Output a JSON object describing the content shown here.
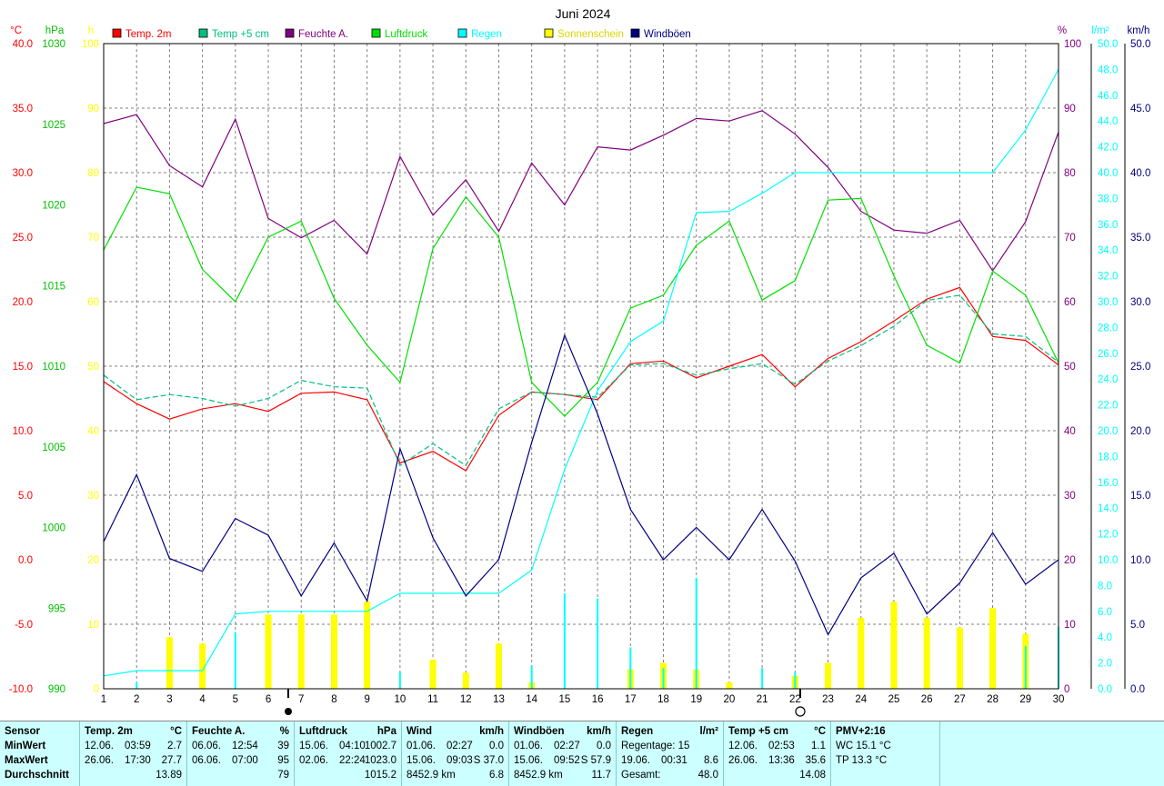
{
  "chart_data": {
    "type": "line",
    "title": "Juni 2024",
    "x": [
      1,
      2,
      3,
      4,
      5,
      6,
      7,
      8,
      9,
      10,
      11,
      12,
      13,
      14,
      15,
      16,
      17,
      18,
      19,
      20,
      21,
      22,
      23,
      24,
      25,
      26,
      27,
      28,
      29,
      30
    ],
    "axes": {
      "temp": {
        "unit": "°C",
        "min": -10,
        "max": 40,
        "ticks": [
          "40.0",
          "35.0",
          "30.0",
          "25.0",
          "20.0",
          "15.0",
          "10.0",
          "5.0",
          "0.0",
          "-5.0",
          "-10.0"
        ],
        "color": "#ff0000"
      },
      "pressure": {
        "unit": "hPa",
        "min": 990,
        "max": 1030,
        "ticks": [
          "1030",
          "1025",
          "1020",
          "1015",
          "1010",
          "1005",
          "1000",
          "995",
          "990"
        ],
        "color": "#00c000"
      },
      "sun": {
        "unit": "h",
        "min": 0,
        "max": 100,
        "ticks": [
          "100",
          "90",
          "80",
          "70",
          "60",
          "50",
          "40",
          "30",
          "20",
          "10",
          "0"
        ],
        "color": "#ffff00"
      },
      "humidity": {
        "unit": "%",
        "min": 0,
        "max": 100,
        "ticks": [
          "100",
          "90",
          "80",
          "70",
          "60",
          "50",
          "40",
          "30",
          "20",
          "10",
          "0"
        ],
        "color": "#800080"
      },
      "rain": {
        "unit": "l/m²",
        "min": 0,
        "max": 50,
        "ticks": [
          "50.0",
          "48.0",
          "46.0",
          "44.0",
          "42.0",
          "40.0",
          "38.0",
          "36.0",
          "34.0",
          "32.0",
          "30.0",
          "28.0",
          "26.0",
          "24.0",
          "22.0",
          "20.0",
          "18.0",
          "16.0",
          "14.0",
          "12.0",
          "10.0",
          "8.0",
          "6.0",
          "4.0",
          "2.0",
          "0.0"
        ],
        "color": "#00ffff"
      },
      "wind": {
        "unit": "km/h",
        "min": 0,
        "max": 50,
        "ticks": [
          "50.0",
          "45.0",
          "40.0",
          "35.0",
          "30.0",
          "25.0",
          "20.0",
          "15.0",
          "10.0",
          "5.0",
          "0.0"
        ],
        "color": "#000080"
      }
    },
    "legend": [
      {
        "name": "Temp. 2m",
        "color": "#ff0000"
      },
      {
        "name": "Temp +5 cm",
        "color": "#00c080"
      },
      {
        "name": "Feuchte A.",
        "color": "#800080"
      },
      {
        "name": "Luftdruck",
        "color": "#00e000"
      },
      {
        "name": "Regen",
        "color": "#00ffff"
      },
      {
        "name": "Sonnenschein",
        "color": "#ffff00"
      },
      {
        "name": "Windböen",
        "color": "#000080"
      }
    ],
    "series": [
      {
        "name": "Temp. 2m",
        "axis": "temp",
        "color": "#ff0000",
        "dash": false,
        "values": [
          13.8,
          12.1,
          10.9,
          11.7,
          12.1,
          11.5,
          12.9,
          13.0,
          12.4,
          7.5,
          8.4,
          6.9,
          11.2,
          13.0,
          12.8,
          12.4,
          15.2,
          15.4,
          14.1,
          15.0,
          15.9,
          13.4,
          15.6,
          16.9,
          18.5,
          20.2,
          21.1,
          17.3,
          17.0,
          15.1
        ]
      },
      {
        "name": "Temp +5 cm",
        "axis": "temp",
        "color": "#00c080",
        "dash": true,
        "values": [
          14.3,
          12.4,
          12.8,
          12.5,
          11.9,
          12.5,
          13.9,
          13.4,
          13.3,
          7.3,
          9.0,
          7.3,
          11.7,
          13.0,
          12.8,
          12.6,
          15.1,
          15.2,
          14.3,
          14.8,
          15.2,
          13.6,
          15.4,
          16.6,
          18.1,
          20.1,
          20.5,
          17.5,
          17.3,
          15.3
        ]
      },
      {
        "name": "Feuchte A.",
        "axis": "humidity",
        "color": "#800080",
        "dash": false,
        "values": [
          87.6,
          89.0,
          81.1,
          77.8,
          88.3,
          72.9,
          69.9,
          72.6,
          67.4,
          82.5,
          73.4,
          78.9,
          70.9,
          81.5,
          75.0,
          84.0,
          83.5,
          85.8,
          88.4,
          88.0,
          89.6,
          86.0,
          80.8,
          74.0,
          71.1,
          70.6,
          72.6,
          64.8,
          72.4,
          86.3
        ]
      },
      {
        "name": "Luftdruck",
        "axis": "pressure",
        "color": "#00e000",
        "dash": false,
        "values": [
          1017.2,
          1021.1,
          1020.7,
          1016.0,
          1014.0,
          1018.0,
          1019.0,
          1014.2,
          1011.3,
          1009.0,
          1017.3,
          1020.5,
          1018.0,
          1009.0,
          1006.9,
          1009.0,
          1013.6,
          1014.4,
          1017.5,
          1019.0,
          1014.1,
          1015.3,
          1020.3,
          1020.4,
          1015.6,
          1011.3,
          1010.2,
          1015.9,
          1014.4,
          1010.2
        ]
      },
      {
        "name": "Regen",
        "axis": "rain",
        "color": "#00ffff",
        "dash": false,
        "values": [
          1.0,
          1.4,
          1.4,
          1.4,
          5.8,
          6.0,
          6.0,
          6.0,
          6.0,
          7.4,
          7.4,
          7.4,
          7.4,
          9.2,
          17.0,
          23.1,
          26.9,
          28.5,
          36.9,
          37.0,
          38.4,
          40.0,
          40.0,
          40.0,
          40.0,
          40.0,
          40.0,
          40.0,
          43.3,
          48.0
        ]
      },
      {
        "name": "Windböen",
        "axis": "wind",
        "color": "#000080",
        "dash": false,
        "values": [
          11.4,
          16.6,
          10.1,
          9.1,
          13.2,
          11.9,
          7.2,
          11.3,
          6.8,
          18.6,
          11.7,
          7.2,
          10.0,
          19.1,
          27.4,
          21.3,
          13.9,
          10.0,
          12.5,
          10.0,
          13.9,
          9.9,
          4.2,
          8.6,
          10.5,
          5.8,
          8.2,
          12.1,
          8.1,
          10.0
        ]
      }
    ],
    "bars": [
      {
        "name": "Sonnenschein",
        "axis": "sun",
        "color": "#ffff00",
        "width": 7,
        "values": [
          0,
          0,
          8,
          7,
          0,
          11.5,
          11.5,
          11.5,
          13.5,
          0,
          4.5,
          2.5,
          7,
          1,
          0,
          0,
          3,
          4,
          3,
          1,
          0,
          2,
          4,
          11,
          13.5,
          11,
          9.5,
          12.5,
          8.5,
          0
        ]
      },
      {
        "name": "Regen (Tag)",
        "axis": "rain",
        "color": "#00ffff",
        "width": 2,
        "values": [
          0,
          0.5,
          0,
          0,
          4.4,
          0,
          0,
          0,
          0,
          1.3,
          0,
          0,
          0,
          1.8,
          7.4,
          7.0,
          3.2,
          1.6,
          8.6,
          0,
          1.6,
          1.3,
          0,
          0,
          0,
          0,
          0,
          0,
          3.3,
          4.8
        ]
      }
    ],
    "grid": true
  },
  "stats": {
    "sensor": {
      "title": "Sensor",
      "rows": [
        "MinWert",
        "MaxWert",
        "Durchschnitt"
      ]
    },
    "blocks": [
      {
        "title": "Temp. 2m",
        "unit": "°C",
        "rows": [
          [
            "12.06.",
            "03:59",
            "2.7"
          ],
          [
            "26.06.",
            "17:30",
            "27.7"
          ],
          [
            "",
            "",
            "13.89"
          ]
        ]
      },
      {
        "title": "Feuchte A.",
        "unit": "%",
        "rows": [
          [
            "06.06.",
            "12:54",
            "39"
          ],
          [
            "06.06.",
            "07:00",
            "95"
          ],
          [
            "",
            "",
            "79"
          ]
        ]
      },
      {
        "title": "Luftdruck",
        "unit": "hPa",
        "rows": [
          [
            "15.06.",
            "04:10",
            "1002.7"
          ],
          [
            "02.06.",
            "22:24",
            "1023.0"
          ],
          [
            "",
            "",
            "1015.2"
          ]
        ]
      },
      {
        "title": "Wind",
        "unit": "km/h",
        "rows": [
          [
            "01.06.",
            "02:27",
            "0.0"
          ],
          [
            "15.06.",
            "09:03",
            "S 37.0"
          ],
          [
            "8452.9 km",
            "",
            "6.8"
          ]
        ]
      },
      {
        "title": "Windböen",
        "unit": "km/h",
        "rows": [
          [
            "01.06.",
            "02:27",
            "0.0"
          ],
          [
            "15.06.",
            "09:52",
            "S 57.9"
          ],
          [
            "8452.9 km",
            "",
            "11.7"
          ]
        ]
      },
      {
        "title": "Regen",
        "unit": "l/m²",
        "rows": [
          [
            "Regentage: 15",
            "",
            ""
          ],
          [
            "19.06.",
            "00:31",
            "8.6"
          ],
          [
            "Gesamt:",
            "",
            "48.0"
          ]
        ]
      },
      {
        "title": "Temp +5 cm",
        "unit": "°C",
        "rows": [
          [
            "12.06.",
            "02:53",
            "1.1"
          ],
          [
            "26.06.",
            "13:36",
            "35.6"
          ],
          [
            "",
            "",
            "14.08"
          ]
        ]
      },
      {
        "title": "PMV+2:16",
        "unit": "",
        "rows": [
          [
            "WC 15.1 °C",
            "",
            ""
          ],
          [
            "TP 13.3 °C",
            "",
            ""
          ],
          [
            "",
            "",
            ""
          ]
        ]
      }
    ]
  }
}
